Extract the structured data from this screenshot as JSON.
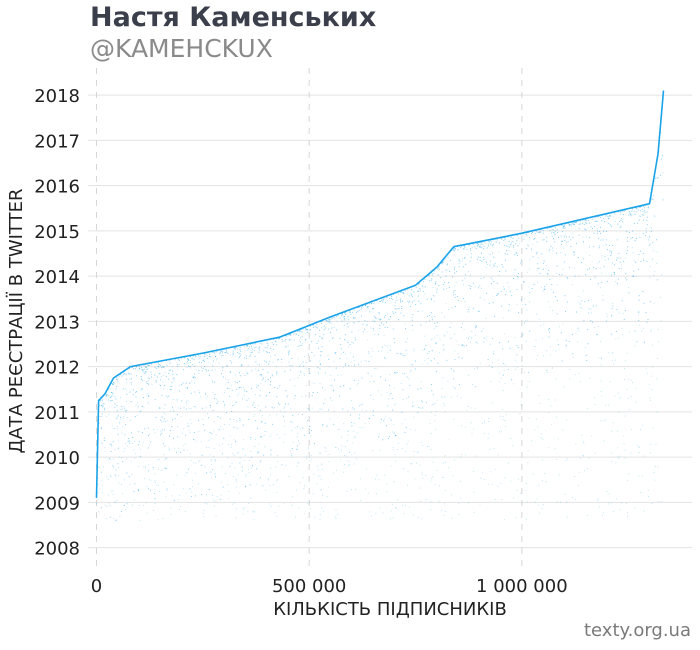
{
  "header": {
    "title": "Настя Каменських",
    "subtitle": "@KAMEHCKUX"
  },
  "footer": {
    "source": "texty.org.ua"
  },
  "colors": {
    "points": "#1aa3e8",
    "grid": "#e3e3e3",
    "grid_dashed": "#d6d6d6",
    "title": "#3b3f4c",
    "subtitle": "#8a8a8a"
  },
  "chart_data": {
    "type": "scatter",
    "title": "Настя Каменських",
    "subtitle": "@KAMEHCKUX",
    "xlabel": "КІЛЬКІСТЬ ПІДПИСНИКІВ",
    "ylabel": "ДАТА РЕЄСТРАЦІЇ В TWITTER",
    "xlim": [
      -20000,
      1400000
    ],
    "ylim": [
      2007.55,
      2018.6
    ],
    "x_ticks": [
      0,
      500000,
      1000000
    ],
    "x_tick_labels": [
      "0",
      "500 000",
      "1 000 000"
    ],
    "y_ticks": [
      2008,
      2009,
      2010,
      2011,
      2012,
      2013,
      2014,
      2015,
      2016,
      2017,
      2018
    ],
    "y_tick_labels": [
      "2008",
      "2009",
      "2010",
      "2011",
      "2012",
      "2013",
      "2014",
      "2015",
      "2016",
      "2017",
      "2018"
    ],
    "grid": true,
    "series": [
      {
        "values_description_x": "follower index",
        "frontier_points": [
          {
            "x": 0,
            "y": 2009.1
          },
          {
            "x": 5000,
            "y": 2011.25
          },
          {
            "x": 20000,
            "y": 2011.4
          },
          {
            "x": 40000,
            "y": 2011.75
          },
          {
            "x": 80000,
            "y": 2012.0
          },
          {
            "x": 250000,
            "y": 2012.3
          },
          {
            "x": 430000,
            "y": 2012.65
          },
          {
            "x": 550000,
            "y": 2013.1
          },
          {
            "x": 750000,
            "y": 2013.8
          },
          {
            "x": 800000,
            "y": 2014.2
          },
          {
            "x": 840000,
            "y": 2014.65
          },
          {
            "x": 1000000,
            "y": 2014.95
          },
          {
            "x": 1300000,
            "y": 2015.6
          },
          {
            "x": 1320000,
            "y": 2016.7
          },
          {
            "x": 1333000,
            "y": 2018.1
          }
        ]
      }
    ]
  }
}
